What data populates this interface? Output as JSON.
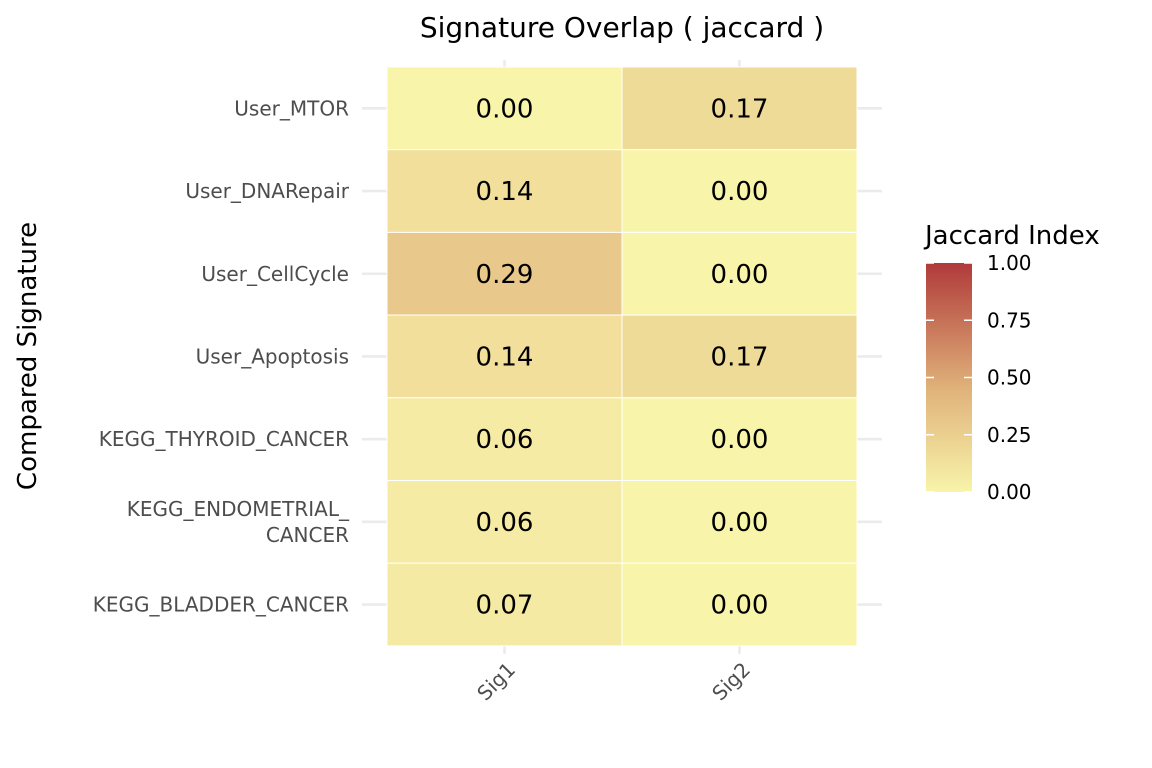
{
  "chart_data": {
    "type": "heatmap",
    "title": "Signature Overlap ( jaccard )",
    "xlabel": "",
    "ylabel": "Compared Signature",
    "x_categories": [
      "Sig1",
      "Sig2"
    ],
    "y_categories": [
      "User_MTOR",
      "User_DNARepair",
      "User_CellCycle",
      "User_Apoptosis",
      "KEGG_THYROID_CANCER",
      "KEGG_ENDOMETRIAL_\nCANCER",
      "KEGG_BLADDER_CANCER"
    ],
    "values": [
      [
        0.0,
        0.17
      ],
      [
        0.14,
        0.0
      ],
      [
        0.29,
        0.0
      ],
      [
        0.14,
        0.17
      ],
      [
        0.06,
        0.0
      ],
      [
        0.06,
        0.0
      ],
      [
        0.07,
        0.0
      ]
    ],
    "value_labels": [
      [
        "0.00",
        "0.17"
      ],
      [
        "0.14",
        "0.00"
      ],
      [
        "0.29",
        "0.00"
      ],
      [
        "0.14",
        "0.17"
      ],
      [
        "0.06",
        "0.00"
      ],
      [
        "0.06",
        "0.00"
      ],
      [
        "0.07",
        "0.00"
      ]
    ],
    "legend": {
      "title": "Jaccard Index",
      "range": [
        0,
        1
      ],
      "ticks": [
        1.0,
        0.75,
        0.5,
        0.25,
        0.0
      ],
      "tick_labels": [
        "1.00",
        "0.75",
        "0.50",
        "0.25",
        "0.00"
      ],
      "placement": "right"
    },
    "colors": {
      "low": "#f8f4aa",
      "mid": "#e0b27a",
      "high": "#b03a3a"
    },
    "grid": true
  }
}
